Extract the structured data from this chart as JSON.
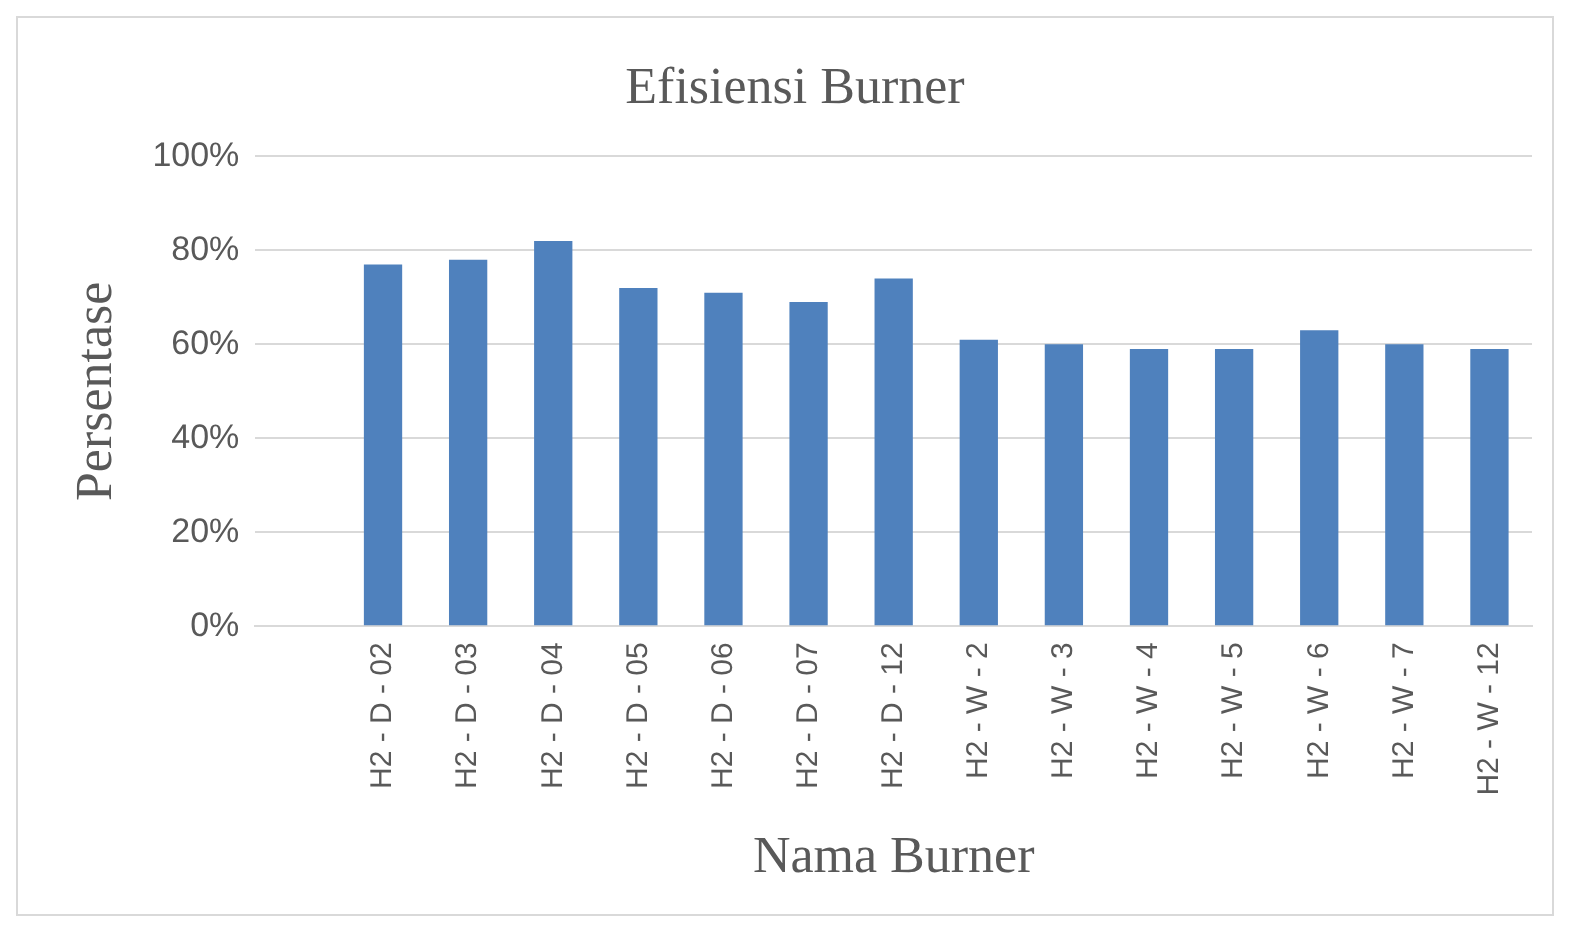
{
  "chart_data": {
    "type": "bar",
    "title": "Efisiensi Burner",
    "xlabel": "Nama Burner",
    "ylabel": "Persentase",
    "categories": [
      null,
      "H2 - D - 02",
      "H2 - D - 03",
      "H2 - D - 04",
      "H2 - D - 05",
      "H2 - D - 06",
      "H2 - D - 07",
      "H2 - D - 12",
      "H2 - W - 2",
      "H2 - W - 3",
      "H2 - W - 4",
      "H2 - W - 5",
      "H2 - W - 6",
      "H2 - W - 7",
      "H2 - W - 12"
    ],
    "values": [
      null,
      77,
      78,
      82,
      72,
      71,
      69,
      74,
      61,
      60,
      59,
      59,
      63,
      60,
      59
    ],
    "color": "#4f81bd",
    "ylim": [
      0,
      100
    ],
    "yticks": [
      {
        "value": 0,
        "label": "0%"
      },
      {
        "value": 20,
        "label": "20%"
      },
      {
        "value": 40,
        "label": "40%"
      },
      {
        "value": 60,
        "label": "60%"
      },
      {
        "value": 80,
        "label": "80%"
      },
      {
        "value": 100,
        "label": "100%"
      }
    ],
    "grid": "y"
  }
}
